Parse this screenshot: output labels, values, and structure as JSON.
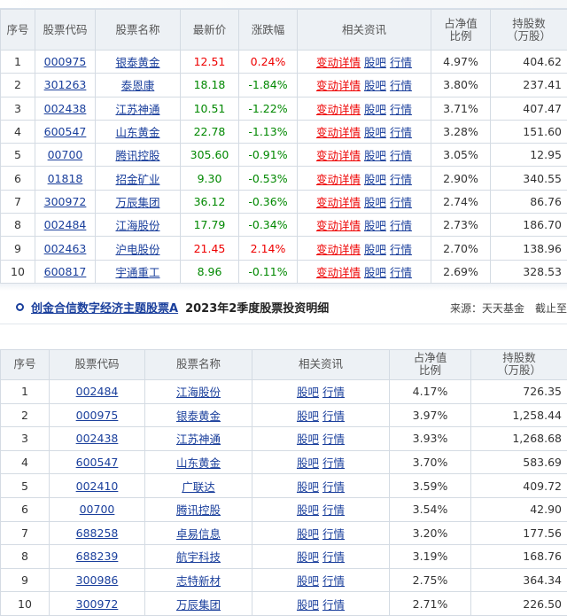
{
  "table1": {
    "headers": {
      "idx": "序号",
      "code": "股票代码",
      "name": "股票名称",
      "price": "最新价",
      "chg": "涨跌幅",
      "info": "相关资讯",
      "ratio": "占净值\n比例",
      "shares": "持股数\n（万股）"
    },
    "info_links": {
      "detail": "变动详情",
      "ba": "股吧",
      "hq": "行情"
    },
    "rows": [
      {
        "idx": "1",
        "code": "000975",
        "name": "银泰黄金",
        "price": "12.51",
        "chg": "0.24%",
        "dir": "up",
        "ratio": "4.97%",
        "shares": "404.62"
      },
      {
        "idx": "2",
        "code": "301263",
        "name": "泰恩康",
        "price": "18.18",
        "chg": "-1.84%",
        "dir": "down",
        "ratio": "3.80%",
        "shares": "237.41"
      },
      {
        "idx": "3",
        "code": "002438",
        "name": "江苏神通",
        "price": "10.51",
        "chg": "-1.22%",
        "dir": "down",
        "ratio": "3.71%",
        "shares": "407.47"
      },
      {
        "idx": "4",
        "code": "600547",
        "name": "山东黄金",
        "price": "22.78",
        "chg": "-1.13%",
        "dir": "down",
        "ratio": "3.28%",
        "shares": "151.60"
      },
      {
        "idx": "5",
        "code": "00700",
        "name": "腾讯控股",
        "price": "305.60",
        "chg": "-0.91%",
        "dir": "down",
        "ratio": "3.05%",
        "shares": "12.95"
      },
      {
        "idx": "6",
        "code": "01818",
        "name": "招金矿业",
        "price": "9.30",
        "chg": "-0.53%",
        "dir": "down",
        "ratio": "2.90%",
        "shares": "340.55"
      },
      {
        "idx": "7",
        "code": "300972",
        "name": "万辰集团",
        "price": "36.12",
        "chg": "-0.36%",
        "dir": "down",
        "ratio": "2.74%",
        "shares": "86.76"
      },
      {
        "idx": "8",
        "code": "002484",
        "name": "江海股份",
        "price": "17.79",
        "chg": "-0.34%",
        "dir": "down",
        "ratio": "2.73%",
        "shares": "186.70"
      },
      {
        "idx": "9",
        "code": "002463",
        "name": "沪电股份",
        "price": "21.45",
        "chg": "2.14%",
        "dir": "up",
        "ratio": "2.70%",
        "shares": "138.96"
      },
      {
        "idx": "10",
        "code": "600817",
        "name": "宇通重工",
        "price": "8.96",
        "chg": "-0.11%",
        "dir": "down",
        "ratio": "2.69%",
        "shares": "328.53"
      }
    ]
  },
  "section2": {
    "fund_name": "创金合信数字经济主题股票A",
    "title_rest": "2023年2季度股票投资明细",
    "source": "来源：天天基金　截止至"
  },
  "table2": {
    "headers": {
      "idx": "序号",
      "code": "股票代码",
      "name": "股票名称",
      "info": "相关资讯",
      "ratio": "占净值\n比例",
      "shares": "持股数\n（万股）"
    },
    "info_links": {
      "ba": "股吧",
      "hq": "行情"
    },
    "rows": [
      {
        "idx": "1",
        "code": "002484",
        "name": "江海股份",
        "ratio": "4.17%",
        "shares": "726.35"
      },
      {
        "idx": "2",
        "code": "000975",
        "name": "银泰黄金",
        "ratio": "3.97%",
        "shares": "1,258.44"
      },
      {
        "idx": "3",
        "code": "002438",
        "name": "江苏神通",
        "ratio": "3.93%",
        "shares": "1,268.68"
      },
      {
        "idx": "4",
        "code": "600547",
        "name": "山东黄金",
        "ratio": "3.70%",
        "shares": "583.69"
      },
      {
        "idx": "5",
        "code": "002410",
        "name": "广联达",
        "ratio": "3.59%",
        "shares": "409.72"
      },
      {
        "idx": "6",
        "code": "00700",
        "name": "腾讯控股",
        "ratio": "3.54%",
        "shares": "42.90"
      },
      {
        "idx": "7",
        "code": "688258",
        "name": "卓易信息",
        "ratio": "3.20%",
        "shares": "177.56"
      },
      {
        "idx": "8",
        "code": "688239",
        "name": "航宇科技",
        "ratio": "3.19%",
        "shares": "168.76"
      },
      {
        "idx": "9",
        "code": "300986",
        "name": "志特新材",
        "ratio": "2.75%",
        "shares": "364.34"
      },
      {
        "idx": "10",
        "code": "300972",
        "name": "万辰集团",
        "ratio": "2.71%",
        "shares": "226.50"
      }
    ]
  }
}
